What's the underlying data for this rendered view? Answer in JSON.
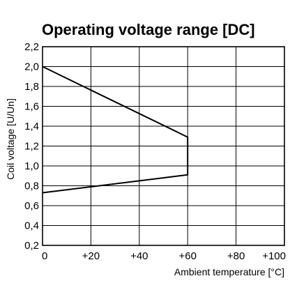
{
  "chart_data": {
    "type": "line",
    "title": "Operating voltage range [DC]",
    "xlabel": "Ambient temperature [°C]",
    "ylabel": "Coil voltage [U/Un]",
    "xlim": [
      0,
      100
    ],
    "ylim": [
      0.2,
      2.2
    ],
    "x_ticks": [
      0,
      20,
      40,
      60,
      80,
      100
    ],
    "x_tick_labels": [
      "0",
      "+20",
      "+40",
      "+60",
      "+80",
      "+100"
    ],
    "y_ticks": [
      2.2,
      2.0,
      1.8,
      1.6,
      1.4,
      1.2,
      1.0,
      0.8,
      0.6,
      0.4,
      0.2
    ],
    "y_tick_labels": [
      "2,2",
      "2,0",
      "1,8",
      "1,6",
      "1,4",
      "1,2",
      "1,0",
      "0,8",
      "0,6",
      "0,4",
      "0,2"
    ],
    "grid": true,
    "series": [
      {
        "x": [
          0,
          60,
          60,
          0
        ],
        "y": [
          2.0,
          1.29,
          0.91,
          0.73
        ]
      }
    ]
  }
}
